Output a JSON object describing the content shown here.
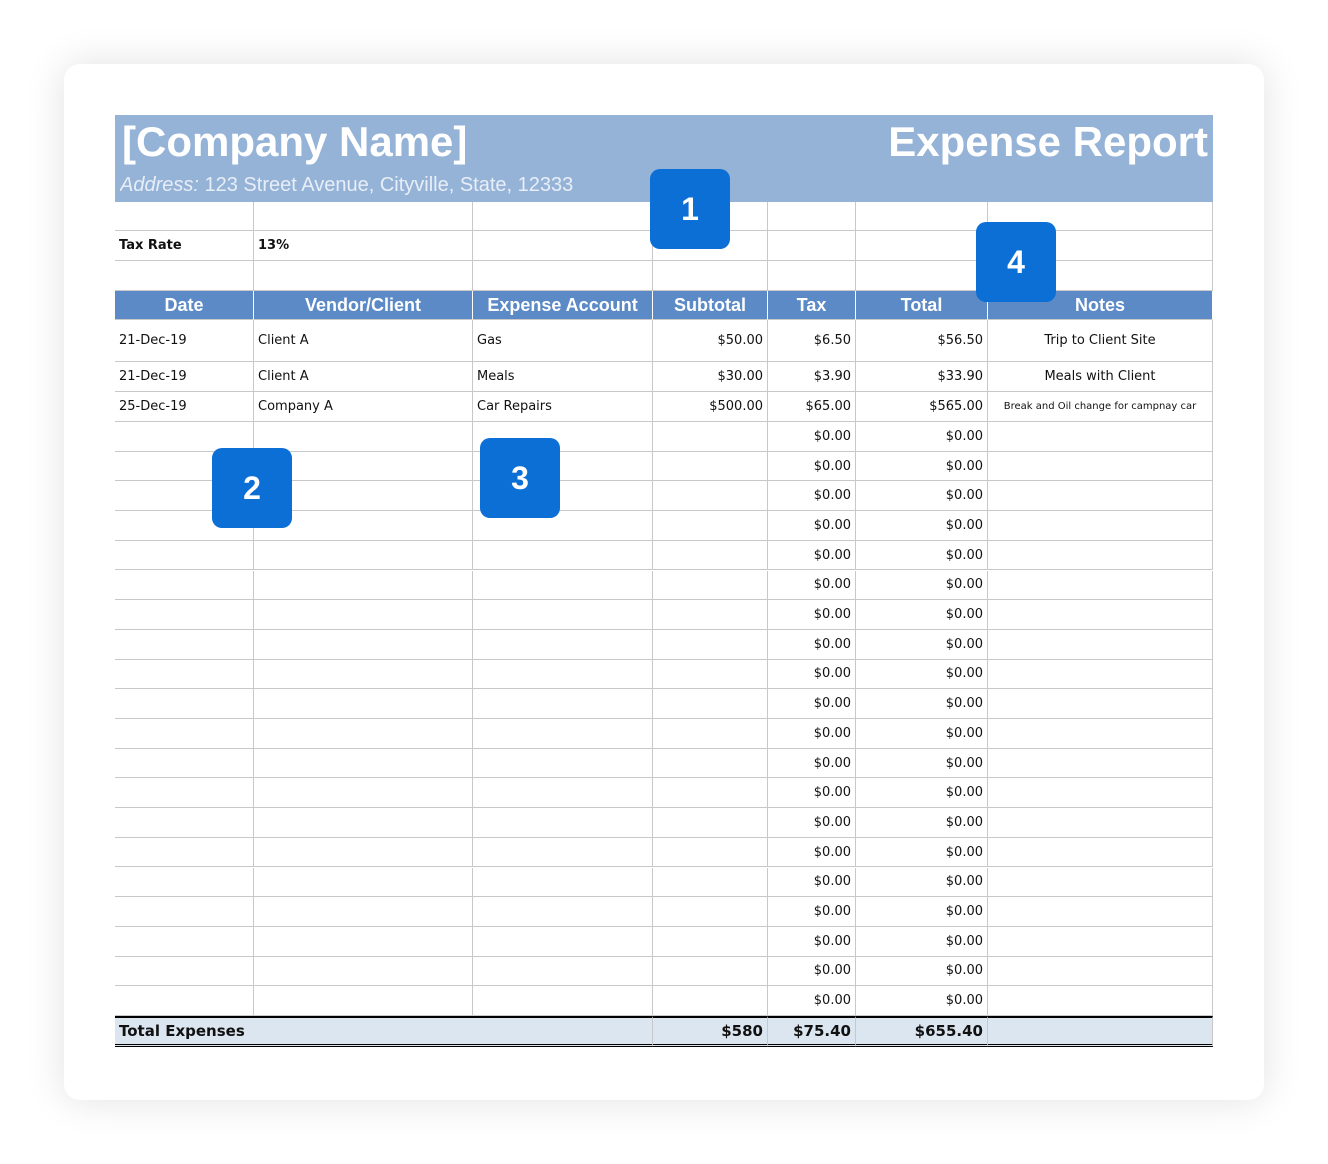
{
  "header": {
    "company": "[Company Name]",
    "title": "Expense Report",
    "address_label": "Address:",
    "address": "123 Street Avenue, Cityville, State, 12333"
  },
  "tax_rate": {
    "label": "Tax Rate",
    "value": "13%"
  },
  "table": {
    "columns": [
      "Date",
      "Vendor/Client",
      "Expense Account",
      "Subtotal",
      "Tax",
      "Total",
      "Notes"
    ],
    "rows": [
      [
        "21-Dec-19",
        "Client A",
        "Gas",
        "$50.00",
        "$6.50",
        "$56.50",
        "Trip to Client Site"
      ],
      [
        "21-Dec-19",
        "Client A",
        "Meals",
        "$30.00",
        "$3.90",
        "$33.90",
        "Meals with Client"
      ],
      [
        "25-Dec-19",
        "Company A",
        "Car Repairs",
        "$500.00",
        "$65.00",
        "$565.00",
        "Break and Oil change for campnay car"
      ],
      [
        null,
        null,
        null,
        null,
        "$0.00",
        "$0.00",
        null
      ],
      [
        null,
        null,
        null,
        null,
        "$0.00",
        "$0.00",
        null
      ],
      [
        null,
        null,
        null,
        null,
        "$0.00",
        "$0.00",
        null
      ],
      [
        null,
        null,
        null,
        null,
        "$0.00",
        "$0.00",
        null
      ],
      [
        null,
        null,
        null,
        null,
        "$0.00",
        "$0.00",
        null
      ],
      [
        null,
        null,
        null,
        null,
        "$0.00",
        "$0.00",
        null
      ],
      [
        null,
        null,
        null,
        null,
        "$0.00",
        "$0.00",
        null
      ],
      [
        null,
        null,
        null,
        null,
        "$0.00",
        "$0.00",
        null
      ],
      [
        null,
        null,
        null,
        null,
        "$0.00",
        "$0.00",
        null
      ],
      [
        null,
        null,
        null,
        null,
        "$0.00",
        "$0.00",
        null
      ],
      [
        null,
        null,
        null,
        null,
        "$0.00",
        "$0.00",
        null
      ],
      [
        null,
        null,
        null,
        null,
        "$0.00",
        "$0.00",
        null
      ],
      [
        null,
        null,
        null,
        null,
        "$0.00",
        "$0.00",
        null
      ],
      [
        null,
        null,
        null,
        null,
        "$0.00",
        "$0.00",
        null
      ],
      [
        null,
        null,
        null,
        null,
        "$0.00",
        "$0.00",
        null
      ],
      [
        null,
        null,
        null,
        null,
        "$0.00",
        "$0.00",
        null
      ],
      [
        null,
        null,
        null,
        null,
        "$0.00",
        "$0.00",
        null
      ],
      [
        null,
        null,
        null,
        null,
        "$0.00",
        "$0.00",
        null
      ],
      [
        null,
        null,
        null,
        null,
        "$0.00",
        "$0.00",
        null
      ],
      [
        null,
        null,
        null,
        null,
        "$0.00",
        "$0.00",
        null
      ]
    ]
  },
  "totals": {
    "label": "Total Expenses",
    "subtotal": "$580",
    "tax": "$75.40",
    "total": "$655.40"
  },
  "callouts": [
    "1",
    "2",
    "3",
    "4"
  ]
}
